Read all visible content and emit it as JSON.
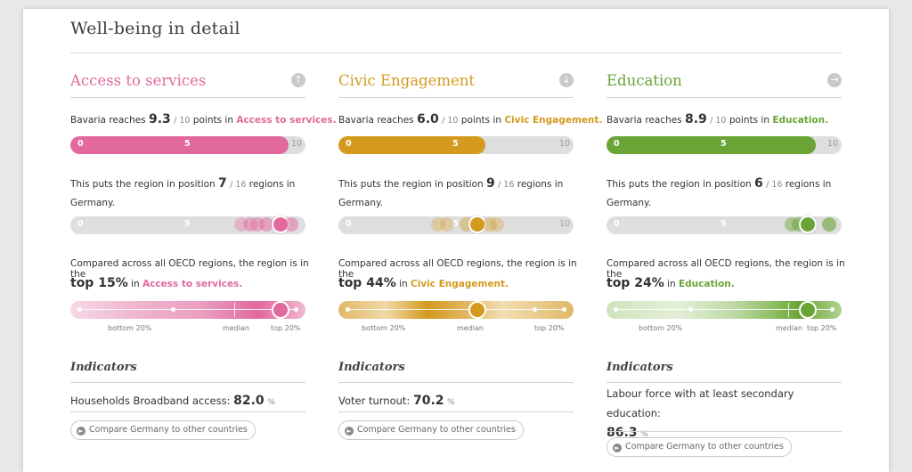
{
  "title": "Well-being in detail",
  "region": "Bavaria",
  "country_text": "Germany.",
  "compare_button": "Compare Germany to other countries",
  "strings": {
    "reaches": "reaches",
    "points_in": "points in",
    "of10": "/ 10",
    "pos_prefix": "This puts the region in position",
    "pos_of16": "/ 16",
    "pos_suffix": "regions in",
    "cmp_prefix": "Compared across all OECD regions, the region is in the",
    "in": "in",
    "indicators": "Indicators",
    "bottom20": "bottom 20%",
    "median": "median",
    "top20": "top 20%",
    "tick0": "0",
    "tick5": "5",
    "tick10": "10"
  },
  "columns": [
    {
      "title": "Access to services",
      "color": "#e2699d",
      "arrow": "up-arrow-icon",
      "score": "9.3",
      "score_value": 9.3,
      "rank": "7",
      "top": "top 15%",
      "topic": "Access to services.",
      "indicator_label": "Households Broadband access:",
      "indicator_value": "82.0",
      "indicator_unit": "%"
    },
    {
      "title": "Civic Engagement",
      "color": "#d39a1e",
      "arrow": "down-arrow-icon",
      "score": "6.0",
      "score_value": 6.0,
      "rank": "9",
      "top": "top 44%",
      "topic": "Civic Engagement.",
      "indicator_label": "Voter turnout:",
      "indicator_value": "70.2",
      "indicator_unit": "%"
    },
    {
      "title": "Education",
      "color": "#6aa436",
      "arrow": "right-arrow-icon",
      "score": "8.9",
      "score_value": 8.9,
      "rank": "6",
      "top": "top 24%",
      "topic": "Education.",
      "indicator_label": "Labour force with at least secondary education:",
      "indicator_value": "86.3",
      "indicator_unit": "%"
    }
  ]
}
